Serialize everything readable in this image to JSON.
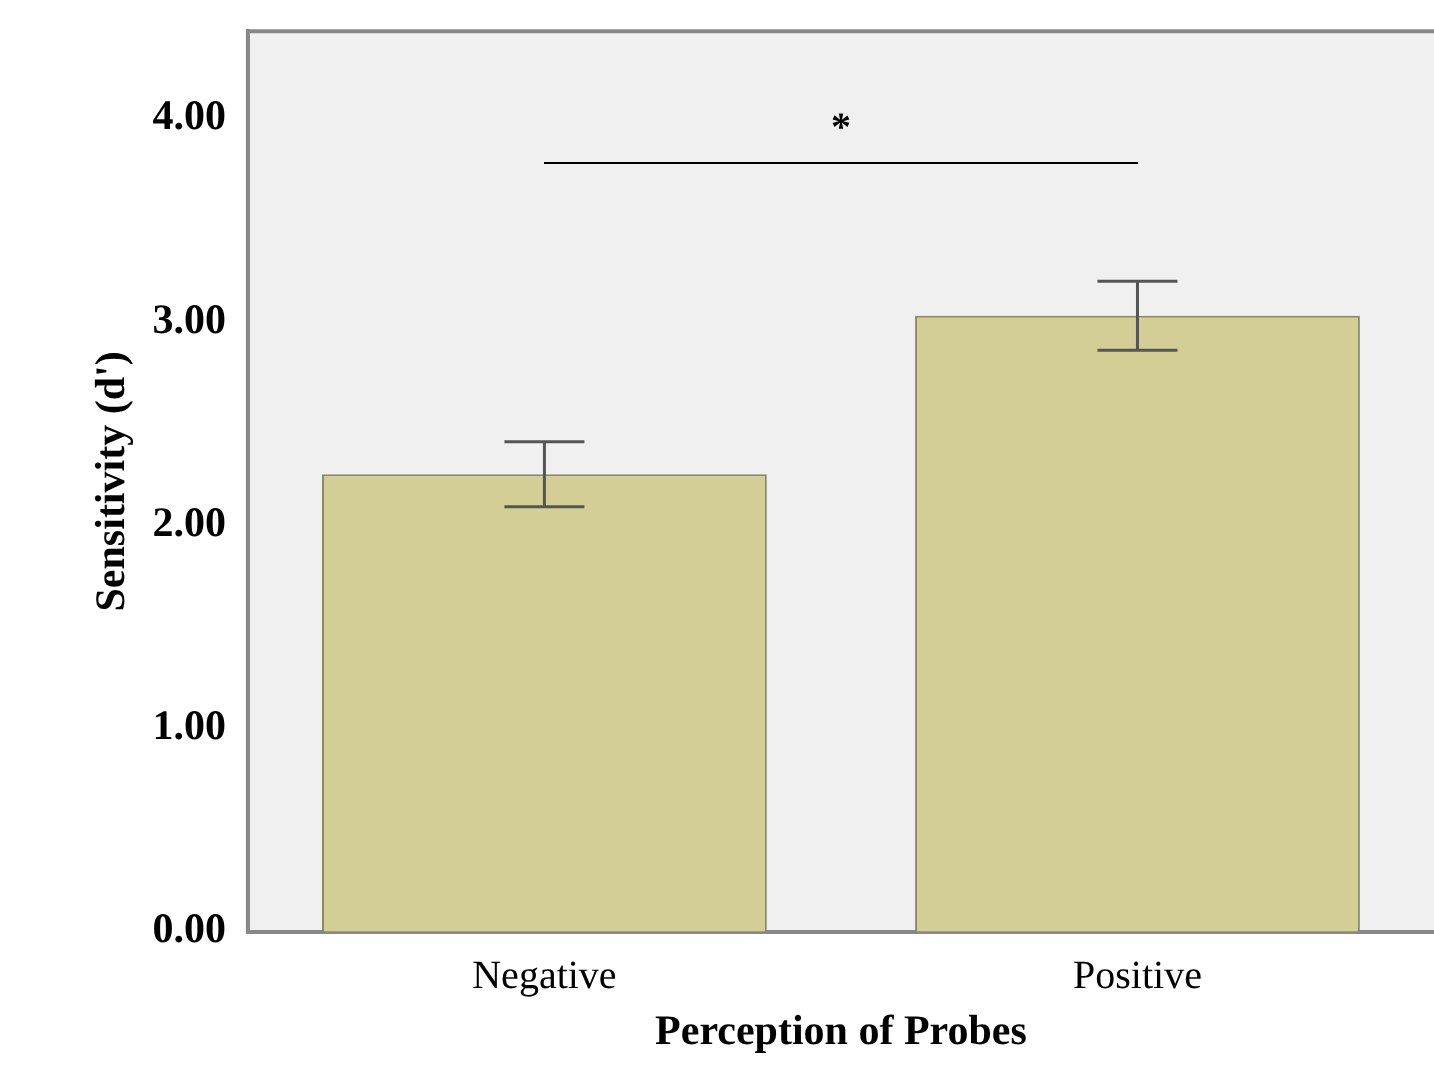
{
  "chart_data": {
    "type": "bar",
    "xlabel": "Perception of Probes",
    "ylabel": "Sensitivity (d')",
    "categories": [
      "Negative",
      "Positive"
    ],
    "values": [
      2.25,
      3.03
    ],
    "errors": [
      0.16,
      0.17
    ],
    "color": "#d3cd96",
    "ylim": [
      0,
      4.43
    ],
    "yticks": [
      {
        "value": 0,
        "label": "0.00"
      },
      {
        "value": 1,
        "label": "1.00"
      },
      {
        "value": 2,
        "label": "2.00"
      },
      {
        "value": 3,
        "label": "3.00"
      },
      {
        "value": 4,
        "label": "4.00"
      }
    ],
    "grid": false,
    "legend": false,
    "annotations": [
      "*"
    ]
  }
}
